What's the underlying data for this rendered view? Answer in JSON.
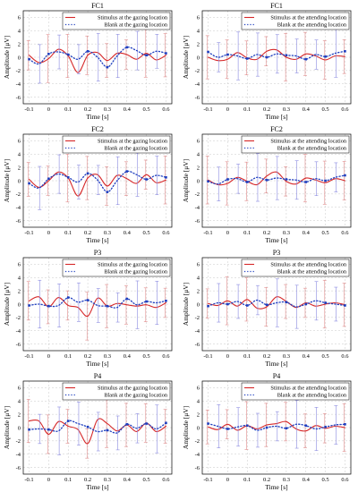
{
  "chart_data": [
    {
      "type": "line",
      "title": "FC1",
      "xlabel": "Time [s]",
      "ylabel": "Amplitude [μV]",
      "xlim": [
        -0.13,
        0.63
      ],
      "ylim": [
        -7,
        7
      ],
      "x_ticks": [
        "-0.1",
        "0",
        "0.1",
        "0.2",
        "0.3",
        "0.4",
        "0.5",
        "0.6"
      ],
      "y_ticks": [
        "-6",
        "-4",
        "-2",
        "0",
        "2",
        "4",
        "6"
      ],
      "grid": true,
      "legend_position": "top-right",
      "x": [
        -0.1,
        -0.05,
        0.0,
        0.05,
        0.1,
        0.15,
        0.2,
        0.25,
        0.3,
        0.35,
        0.4,
        0.45,
        0.5,
        0.55,
        0.6
      ],
      "series": [
        {
          "name": "Stimulus at the gazing location",
          "style": "solid",
          "values": [
            0.3,
            -0.8,
            -0.2,
            1.2,
            0.2,
            -2.3,
            0.3,
            0.7,
            -0.5,
            0.6,
            0.4,
            -0.3,
            0.6,
            -0.4,
            0.3
          ]
        },
        {
          "name": "Blank at the gazing location",
          "style": "dotted",
          "values": [
            -0.3,
            -1.0,
            0.5,
            0.8,
            0.4,
            -0.3,
            0.9,
            0.0,
            -1.5,
            0.2,
            1.5,
            1.0,
            0.3,
            0.9,
            0.6
          ]
        }
      ]
    },
    {
      "type": "line",
      "title": "FC1",
      "xlabel": "Time [s]",
      "ylabel": "Amplitude [μV]",
      "xlim": [
        -0.13,
        0.63
      ],
      "ylim": [
        -7,
        7
      ],
      "x_ticks": [
        "-0.1",
        "0",
        "0.1",
        "0.2",
        "0.3",
        "0.4",
        "0.5",
        "0.6"
      ],
      "y_ticks": [
        "-6",
        "-4",
        "-2",
        "0",
        "2",
        "4",
        "6"
      ],
      "grid": true,
      "legend_position": "top-right",
      "x": [
        -0.1,
        -0.05,
        0.0,
        0.05,
        0.1,
        0.15,
        0.2,
        0.25,
        0.3,
        0.35,
        0.4,
        0.45,
        0.5,
        0.55,
        0.6
      ],
      "series": [
        {
          "name": "Stimulus at the attending location",
          "style": "solid",
          "values": [
            0.0,
            -0.5,
            -0.3,
            0.7,
            -0.1,
            -0.3,
            0.9,
            1.1,
            0.0,
            -0.3,
            0.5,
            0.2,
            -0.4,
            0.2,
            0.1
          ]
        },
        {
          "name": "Blank at the attending location",
          "style": "dotted",
          "values": [
            0.8,
            0.0,
            0.4,
            0.2,
            -0.2,
            0.4,
            0.0,
            0.5,
            0.3,
            0.2,
            -0.3,
            0.4,
            0.1,
            0.6,
            0.9
          ]
        }
      ]
    },
    {
      "type": "line",
      "title": "FC2",
      "xlabel": "Time [s]",
      "ylabel": "Amplitude [μV]",
      "xlim": [
        -0.13,
        0.63
      ],
      "ylim": [
        -7,
        7
      ],
      "x_ticks": [
        "-0.1",
        "0",
        "0.1",
        "0.2",
        "0.3",
        "0.4",
        "0.5",
        "0.6"
      ],
      "y_ticks": [
        "-6",
        "-4",
        "-2",
        "0",
        "2",
        "4",
        "6"
      ],
      "grid": true,
      "legend_position": "top-right",
      "x": [
        -0.1,
        -0.05,
        0.0,
        0.05,
        0.1,
        0.15,
        0.2,
        0.25,
        0.3,
        0.35,
        0.4,
        0.45,
        0.5,
        0.55,
        0.6
      ],
      "series": [
        {
          "name": "Stimulus at the gazing location",
          "style": "solid",
          "values": [
            0.2,
            -1.0,
            0.0,
            1.3,
            0.4,
            -2.3,
            0.4,
            0.9,
            -0.8,
            0.8,
            0.3,
            -0.4,
            0.9,
            -0.3,
            0.1
          ]
        },
        {
          "name": "Blank at the gazing location",
          "style": "dotted",
          "values": [
            -0.4,
            -1.1,
            0.3,
            1.0,
            0.5,
            -0.2,
            1.1,
            0.1,
            -1.7,
            0.0,
            1.4,
            0.9,
            0.2,
            0.8,
            0.5
          ]
        }
      ]
    },
    {
      "type": "line",
      "title": "FC2",
      "xlabel": "Time [s]",
      "ylabel": "Amplitude [μV]",
      "xlim": [
        -0.13,
        0.63
      ],
      "ylim": [
        -7,
        7
      ],
      "x_ticks": [
        "-0.1",
        "0",
        "0.1",
        "0.2",
        "0.3",
        "0.4",
        "0.5",
        "0.6"
      ],
      "y_ticks": [
        "-6",
        "-4",
        "-2",
        "0",
        "2",
        "4",
        "6"
      ],
      "grid": true,
      "legend_position": "top-right",
      "x": [
        -0.1,
        -0.05,
        0.0,
        0.05,
        0.1,
        0.15,
        0.2,
        0.25,
        0.3,
        0.35,
        0.4,
        0.45,
        0.5,
        0.55,
        0.6
      ],
      "series": [
        {
          "name": "Stimulus at the attending location",
          "style": "solid",
          "values": [
            0.1,
            -0.6,
            -0.4,
            0.5,
            -0.1,
            -0.6,
            0.7,
            1.3,
            -0.1,
            -0.5,
            0.4,
            0.1,
            -0.3,
            0.3,
            0.0
          ]
        },
        {
          "name": "Blank at the attending location",
          "style": "dotted",
          "values": [
            -0.1,
            -0.5,
            0.2,
            0.3,
            -0.2,
            0.5,
            0.1,
            0.4,
            0.2,
            0.1,
            -0.2,
            0.3,
            0.0,
            0.5,
            0.8
          ]
        }
      ]
    },
    {
      "type": "line",
      "title": "P3",
      "xlabel": "Time [s]",
      "ylabel": "Amplitude [μV]",
      "xlim": [
        -0.13,
        0.63
      ],
      "ylim": [
        -7,
        7
      ],
      "x_ticks": [
        "-0.1",
        "0",
        "0.1",
        "0.2",
        "0.3",
        "0.4",
        "0.5",
        "0.6"
      ],
      "y_ticks": [
        "-6",
        "-4",
        "-2",
        "0",
        "2",
        "4",
        "6"
      ],
      "grid": true,
      "legend_position": "top-right",
      "x": [
        -0.1,
        -0.05,
        0.0,
        0.05,
        0.1,
        0.15,
        0.2,
        0.25,
        0.3,
        0.35,
        0.4,
        0.45,
        0.5,
        0.55,
        0.6
      ],
      "series": [
        {
          "name": "Stimulus at the gazing location",
          "style": "solid",
          "values": [
            0.5,
            1.1,
            -0.4,
            1.0,
            -0.2,
            -0.5,
            -1.8,
            0.9,
            -0.3,
            0.1,
            -0.1,
            -0.3,
            -0.1,
            -0.5,
            0.2
          ]
        },
        {
          "name": "Blank at the gazing location",
          "style": "dotted",
          "values": [
            -0.2,
            0.0,
            -0.3,
            -0.2,
            1.0,
            0.3,
            0.6,
            -0.2,
            -0.3,
            -0.5,
            0.8,
            -0.1,
            0.4,
            0.2,
            0.5
          ]
        }
      ]
    },
    {
      "type": "line",
      "title": "P3",
      "xlabel": "Time [s]",
      "ylabel": "Amplitude [μV]",
      "xlim": [
        -0.13,
        0.63
      ],
      "ylim": [
        -7,
        7
      ],
      "x_ticks": [
        "-0.1",
        "0",
        "0.1",
        "0.2",
        "0.3",
        "0.4",
        "0.5",
        "0.6"
      ],
      "y_ticks": [
        "-6",
        "-4",
        "-2",
        "0",
        "2",
        "4",
        "6"
      ],
      "grid": true,
      "legend_position": "top-right",
      "x": [
        -0.1,
        -0.05,
        0.0,
        0.05,
        0.1,
        0.15,
        0.2,
        0.25,
        0.3,
        0.35,
        0.4,
        0.45,
        0.5,
        0.55,
        0.6
      ],
      "series": [
        {
          "name": "Stimulus at the attending location",
          "style": "solid",
          "values": [
            0.1,
            -0.2,
            0.5,
            -0.3,
            0.7,
            -0.6,
            -0.4,
            1.1,
            0.4,
            -0.5,
            0.2,
            -0.3,
            0.0,
            0.2,
            -0.1
          ]
        },
        {
          "name": "Blank at the attending location",
          "style": "dotted",
          "values": [
            -0.3,
            0.2,
            0.0,
            0.4,
            -0.2,
            0.6,
            -0.1,
            0.2,
            0.3,
            -0.4,
            0.0,
            0.5,
            0.2,
            0.0,
            -0.2
          ]
        }
      ]
    },
    {
      "type": "line",
      "title": "P4",
      "xlabel": "Time [s]",
      "ylabel": "Amplitude [μV]",
      "xlim": [
        -0.13,
        0.63
      ],
      "ylim": [
        -7,
        7
      ],
      "x_ticks": [
        "-0.1",
        "0",
        "0.1",
        "0.2",
        "0.3",
        "0.4",
        "0.5",
        "0.6"
      ],
      "y_ticks": [
        "-6",
        "-4",
        "-2",
        "0",
        "2",
        "4",
        "6"
      ],
      "grid": true,
      "legend_position": "top-right",
      "x": [
        -0.1,
        -0.05,
        0.0,
        0.05,
        0.1,
        0.15,
        0.2,
        0.25,
        0.3,
        0.35,
        0.4,
        0.45,
        0.5,
        0.55,
        0.6
      ],
      "series": [
        {
          "name": "Stimulus at the gazing location",
          "style": "solid",
          "values": [
            1.0,
            1.0,
            -1.0,
            0.9,
            0.2,
            -0.3,
            -2.4,
            1.2,
            0.6,
            -0.5,
            0.4,
            -0.6,
            0.7,
            -0.6,
            0.2
          ]
        },
        {
          "name": "Blank at the gazing location",
          "style": "dotted",
          "values": [
            -0.3,
            -0.2,
            -0.3,
            -0.5,
            1.0,
            0.6,
            0.1,
            -0.6,
            -0.4,
            -0.8,
            0.5,
            -0.1,
            0.6,
            -0.2,
            0.7
          ]
        }
      ]
    },
    {
      "type": "line",
      "title": "P4",
      "xlabel": "Time [s]",
      "ylabel": "Amplitude [μV]",
      "xlim": [
        -0.13,
        0.63
      ],
      "ylim": [
        -7,
        7
      ],
      "x_ticks": [
        "-0.1",
        "0",
        "0.1",
        "0.2",
        "0.3",
        "0.4",
        "0.5",
        "0.6"
      ],
      "y_ticks": [
        "-6",
        "-4",
        "-2",
        "0",
        "2",
        "4",
        "6"
      ],
      "grid": true,
      "legend_position": "top-right",
      "x": [
        -0.1,
        -0.05,
        0.0,
        0.05,
        0.1,
        0.15,
        0.2,
        0.25,
        0.3,
        0.35,
        0.4,
        0.45,
        0.5,
        0.55,
        0.6
      ],
      "series": [
        {
          "name": "Stimulus at the attending location",
          "style": "solid",
          "values": [
            0.1,
            -0.3,
            0.5,
            -0.4,
            0.3,
            -0.2,
            0.4,
            0.6,
            0.9,
            -0.2,
            -0.5,
            0.3,
            -0.1,
            0.2,
            0.0
          ]
        },
        {
          "name": "Blank at the attending location",
          "style": "dotted",
          "values": [
            0.6,
            0.2,
            -0.2,
            0.1,
            0.3,
            -0.4,
            0.0,
            0.2,
            -0.1,
            0.5,
            0.3,
            -0.2,
            0.1,
            0.4,
            0.5
          ]
        }
      ]
    }
  ],
  "colors": {
    "stimulus": "#d62728",
    "blank": "#1f3fbf",
    "stimulus_errorbar": "#e08a8a",
    "blank_errorbar": "#8a8ae0",
    "grid": "#c8c8c8"
  }
}
